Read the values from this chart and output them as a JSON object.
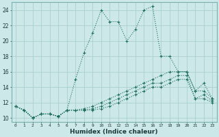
{
  "xlabel": "Humidex (Indice chaleur)",
  "bg_color": "#cce8e8",
  "line_color": "#1a6b5a",
  "grid_color": "#aacece",
  "xlim": [
    -0.5,
    23.5
  ],
  "ylim": [
    9.5,
    25.0
  ],
  "xticks": [
    0,
    1,
    2,
    3,
    4,
    5,
    6,
    7,
    8,
    9,
    10,
    11,
    12,
    13,
    14,
    15,
    16,
    17,
    18,
    19,
    20,
    21,
    22,
    23
  ],
  "yticks": [
    10,
    12,
    14,
    16,
    18,
    20,
    22,
    24
  ],
  "lines": [
    {
      "x": [
        0,
        1,
        2,
        3,
        4,
        5,
        6,
        7,
        8,
        9,
        10,
        11,
        12,
        13,
        14,
        15,
        16,
        17,
        18,
        19,
        20,
        21,
        22,
        23
      ],
      "y": [
        11.5,
        11.0,
        10.0,
        10.5,
        10.5,
        10.2,
        11.0,
        15.0,
        18.5,
        21.0,
        24.0,
        22.5,
        22.5,
        20.0,
        21.5,
        24.0,
        24.5,
        18.0,
        18.0,
        16.0,
        16.0,
        13.5,
        14.5,
        12.5
      ]
    },
    {
      "x": [
        0,
        1,
        2,
        3,
        4,
        5,
        6,
        7,
        8,
        9,
        10,
        11,
        12,
        13,
        14,
        15,
        16,
        17,
        18,
        19,
        20,
        21,
        22,
        23
      ],
      "y": [
        11.5,
        11.0,
        10.0,
        10.5,
        10.5,
        10.2,
        11.0,
        11.0,
        11.2,
        11.5,
        12.0,
        12.5,
        13.0,
        13.5,
        14.0,
        14.5,
        15.0,
        15.5,
        16.0,
        16.0,
        16.0,
        13.5,
        13.5,
        12.5
      ]
    },
    {
      "x": [
        0,
        1,
        2,
        3,
        4,
        5,
        6,
        7,
        8,
        9,
        10,
        11,
        12,
        13,
        14,
        15,
        16,
        17,
        18,
        19,
        20,
        21,
        22,
        23
      ],
      "y": [
        11.5,
        11.0,
        10.0,
        10.5,
        10.5,
        10.2,
        11.0,
        11.0,
        11.0,
        11.2,
        11.5,
        12.0,
        12.5,
        13.0,
        13.5,
        14.0,
        14.5,
        14.5,
        15.0,
        15.5,
        15.5,
        12.5,
        13.0,
        12.2
      ]
    },
    {
      "x": [
        0,
        1,
        2,
        3,
        4,
        5,
        6,
        7,
        8,
        9,
        10,
        11,
        12,
        13,
        14,
        15,
        16,
        17,
        18,
        19,
        20,
        21,
        22,
        23
      ],
      "y": [
        11.5,
        11.0,
        10.0,
        10.5,
        10.5,
        10.2,
        11.0,
        11.0,
        11.0,
        11.0,
        11.2,
        11.5,
        12.0,
        12.5,
        13.0,
        13.5,
        14.0,
        14.0,
        14.5,
        15.0,
        15.0,
        12.5,
        12.5,
        12.0
      ]
    }
  ]
}
